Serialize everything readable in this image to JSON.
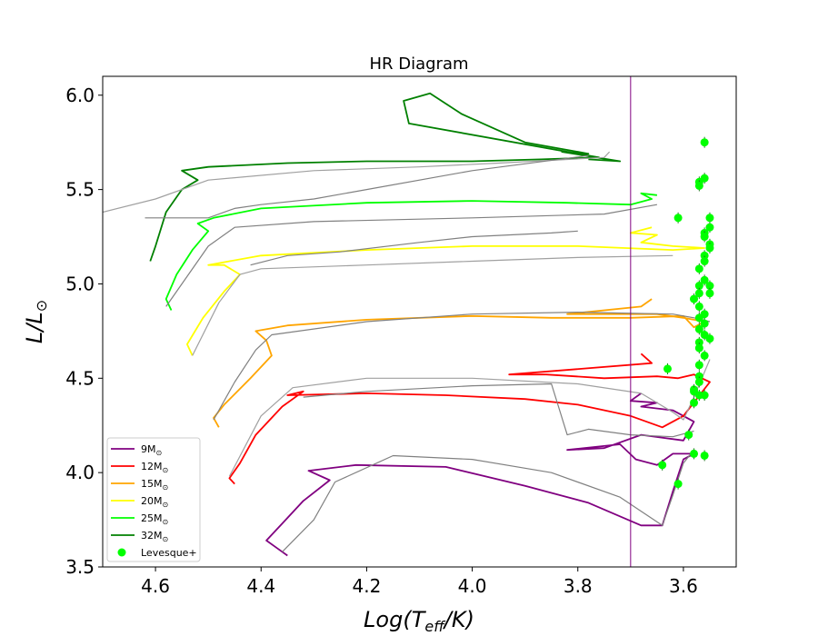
{
  "chart_data": {
    "type": "line",
    "title": "HR Diagram",
    "xlabel": "Log(T_eff/K)",
    "ylabel": "L/L_sun",
    "xlim": [
      4.7,
      3.5
    ],
    "ylim": [
      3.5,
      6.1
    ],
    "x_ticks": [
      "4.6",
      "4.4",
      "4.2",
      "4.0",
      "3.8",
      "3.6"
    ],
    "y_ticks": [
      "3.5",
      "4.0",
      "4.5",
      "5.0",
      "5.5",
      "6.0"
    ],
    "x_tick_values": [
      4.6,
      4.4,
      4.2,
      4.0,
      3.8,
      3.6
    ],
    "y_tick_values": [
      3.5,
      4.0,
      4.5,
      5.0,
      5.5,
      6.0
    ],
    "vline": {
      "x": 3.7,
      "color": "#800080"
    },
    "legend_position": "lower-left",
    "series": [
      {
        "name": "9M",
        "color": "#800080",
        "x": [
          4.35,
          4.37,
          4.39,
          4.36,
          4.32,
          4.27,
          4.31,
          4.22,
          4.05,
          3.9,
          3.78,
          3.68,
          3.64,
          3.62,
          3.6,
          3.58,
          3.62,
          3.65,
          3.69,
          3.72,
          3.82,
          3.75,
          3.68,
          3.6,
          3.58,
          3.62,
          3.68,
          3.65,
          3.7,
          3.68
        ],
        "y": [
          3.56,
          3.6,
          3.64,
          3.73,
          3.85,
          3.96,
          4.01,
          4.04,
          4.03,
          3.93,
          3.84,
          3.72,
          3.72,
          3.9,
          4.07,
          4.1,
          4.1,
          4.04,
          4.07,
          4.15,
          4.12,
          4.13,
          4.2,
          4.17,
          4.27,
          4.33,
          4.35,
          4.37,
          4.38,
          4.42
        ]
      },
      {
        "name": "12M",
        "color": "#ff0000",
        "x": [
          4.45,
          4.46,
          4.44,
          4.41,
          4.36,
          4.32,
          4.35,
          4.2,
          4.05,
          3.9,
          3.8,
          3.7,
          3.64,
          3.6,
          3.55,
          3.58,
          3.61,
          3.65,
          3.75,
          3.86,
          3.93,
          3.66,
          3.68
        ],
        "y": [
          3.94,
          3.97,
          4.05,
          4.2,
          4.35,
          4.43,
          4.41,
          4.42,
          4.41,
          4.39,
          4.36,
          4.3,
          4.24,
          4.3,
          4.48,
          4.52,
          4.5,
          4.51,
          4.5,
          4.52,
          4.52,
          4.58,
          4.63
        ]
      },
      {
        "name": "15M",
        "color": "#ffa500",
        "x": [
          4.48,
          4.49,
          4.47,
          4.42,
          4.38,
          4.39,
          4.41,
          4.35,
          4.2,
          4.0,
          3.85,
          3.7,
          3.6,
          3.58,
          3.56,
          3.6,
          3.65,
          3.72,
          3.82,
          3.68,
          3.66
        ],
        "y": [
          4.24,
          4.29,
          4.36,
          4.5,
          4.62,
          4.7,
          4.75,
          4.78,
          4.81,
          4.83,
          4.82,
          4.82,
          4.83,
          4.77,
          4.8,
          4.82,
          4.84,
          4.84,
          4.84,
          4.88,
          4.92
        ]
      },
      {
        "name": "20M",
        "color": "#ffff00",
        "x": [
          4.53,
          4.54,
          4.51,
          4.47,
          4.44,
          4.47,
          4.5,
          4.4,
          4.2,
          4.0,
          3.8,
          3.62,
          3.56,
          3.62,
          3.68,
          3.65,
          3.7,
          3.66
        ],
        "y": [
          4.62,
          4.68,
          4.82,
          4.96,
          5.05,
          5.1,
          5.1,
          5.15,
          5.18,
          5.2,
          5.2,
          5.18,
          5.19,
          5.2,
          5.22,
          5.26,
          5.27,
          5.3
        ]
      },
      {
        "name": "25M",
        "color": "#00ff00",
        "x": [
          4.57,
          4.58,
          4.56,
          4.53,
          4.5,
          4.52,
          4.49,
          4.4,
          4.2,
          4.0,
          3.82,
          3.7,
          3.66,
          3.68,
          3.65
        ],
        "y": [
          4.86,
          4.92,
          5.05,
          5.18,
          5.28,
          5.32,
          5.35,
          5.4,
          5.43,
          5.44,
          5.43,
          5.42,
          5.45,
          5.48,
          5.47
        ]
      },
      {
        "name": "32M",
        "color": "#008000",
        "x": [
          4.61,
          4.6,
          4.58,
          4.55,
          4.52,
          4.55,
          4.5,
          4.35,
          4.2,
          4.0,
          3.87,
          3.76,
          4.12,
          4.13,
          4.08,
          4.02,
          3.9,
          3.78,
          3.83,
          3.72,
          3.78
        ],
        "y": [
          5.12,
          5.2,
          5.38,
          5.5,
          5.55,
          5.6,
          5.62,
          5.64,
          5.65,
          5.65,
          5.66,
          5.67,
          5.85,
          5.97,
          6.01,
          5.9,
          5.75,
          5.69,
          5.7,
          5.65,
          5.66
        ]
      },
      {
        "name": "grey-9M",
        "color": "#808080",
        "legend": false,
        "x": [
          4.36,
          4.3,
          4.26,
          4.15,
          4.0,
          3.85,
          3.72,
          3.64,
          3.62,
          3.6,
          3.58
        ],
        "y": [
          3.58,
          3.75,
          3.95,
          4.09,
          4.07,
          4.0,
          3.87,
          3.72,
          3.88,
          4.05,
          4.12
        ]
      },
      {
        "name": "grey-12M",
        "color": "#a0a0a0",
        "x": [
          4.46,
          4.4,
          4.34,
          4.2,
          4.0,
          3.8,
          3.68,
          3.62,
          3.6,
          3.58,
          3.55
        ],
        "y": [
          3.98,
          4.3,
          4.45,
          4.5,
          4.5,
          4.47,
          4.42,
          4.32,
          4.28,
          4.4,
          4.6
        ]
      },
      {
        "name": "grey-12M-b",
        "color": "#808080",
        "x": [
          4.32,
          4.2,
          4.0,
          3.85,
          3.82,
          3.78,
          3.7,
          3.62,
          3.58
        ],
        "y": [
          4.4,
          4.43,
          4.46,
          4.47,
          4.2,
          4.23,
          4.2,
          4.19,
          4.22
        ]
      },
      {
        "name": "grey-15M",
        "color": "#808080",
        "x": [
          4.49,
          4.45,
          4.41,
          4.38,
          4.2,
          4.0,
          3.8,
          3.62,
          3.58,
          3.55
        ],
        "y": [
          4.28,
          4.48,
          4.65,
          4.73,
          4.8,
          4.84,
          4.85,
          4.84,
          4.82,
          4.8
        ]
      },
      {
        "name": "grey-20M",
        "color": "#a0a0a0",
        "x": [
          4.53,
          4.48,
          4.44,
          4.4,
          4.2,
          4.0,
          3.8,
          3.62
        ],
        "y": [
          4.62,
          4.9,
          5.05,
          5.08,
          5.1,
          5.12,
          5.14,
          5.15
        ]
      },
      {
        "name": "grey-20M-b",
        "color": "#808080",
        "x": [
          4.42,
          4.35,
          4.25,
          4.1,
          4.0,
          3.85,
          3.8
        ],
        "y": [
          5.1,
          5.15,
          5.17,
          5.22,
          5.25,
          5.27,
          5.28
        ]
      },
      {
        "name": "grey-25M",
        "color": "#808080",
        "x": [
          4.58,
          4.5,
          4.45,
          4.3,
          4.0,
          3.75,
          3.65
        ],
        "y": [
          4.88,
          5.2,
          5.3,
          5.33,
          5.35,
          5.37,
          5.42
        ]
      },
      {
        "name": "grey-32M",
        "color": "#a0a0a0",
        "x": [
          4.7,
          4.6,
          4.5,
          4.3,
          4.1,
          3.95,
          3.75,
          3.74
        ],
        "y": [
          5.38,
          5.45,
          5.55,
          5.6,
          5.62,
          5.64,
          5.67,
          5.7
        ]
      },
      {
        "name": "grey-32M-b",
        "color": "#808080",
        "x": [
          4.62,
          4.5,
          4.45,
          4.4,
          4.3,
          4.2,
          4.0,
          3.78
        ],
        "y": [
          5.35,
          5.35,
          5.4,
          5.42,
          5.45,
          5.5,
          5.6,
          5.68
        ]
      }
    ],
    "scatter": {
      "name": "Levesque+",
      "color": "#00ff00",
      "points": [
        [
          3.56,
          5.75
        ],
        [
          3.56,
          5.56
        ],
        [
          3.57,
          5.54
        ],
        [
          3.57,
          5.52
        ],
        [
          3.61,
          5.35
        ],
        [
          3.55,
          5.35
        ],
        [
          3.55,
          5.3
        ],
        [
          3.56,
          5.27
        ],
        [
          3.56,
          5.25
        ],
        [
          3.55,
          5.21
        ],
        [
          3.55,
          5.19
        ],
        [
          3.56,
          5.15
        ],
        [
          3.56,
          5.12
        ],
        [
          3.57,
          5.08
        ],
        [
          3.56,
          5.02
        ],
        [
          3.55,
          4.99
        ],
        [
          3.57,
          4.99
        ],
        [
          3.55,
          4.95
        ],
        [
          3.57,
          4.95
        ],
        [
          3.58,
          4.92
        ],
        [
          3.57,
          4.88
        ],
        [
          3.56,
          4.84
        ],
        [
          3.57,
          4.82
        ],
        [
          3.56,
          4.79
        ],
        [
          3.57,
          4.76
        ],
        [
          3.56,
          4.73
        ],
        [
          3.55,
          4.71
        ],
        [
          3.57,
          4.69
        ],
        [
          3.57,
          4.66
        ],
        [
          3.56,
          4.62
        ],
        [
          3.57,
          4.57
        ],
        [
          3.63,
          4.55
        ],
        [
          3.57,
          4.51
        ],
        [
          3.57,
          4.48
        ],
        [
          3.58,
          4.44
        ],
        [
          3.58,
          4.43
        ],
        [
          3.57,
          4.41
        ],
        [
          3.56,
          4.41
        ],
        [
          3.58,
          4.37
        ],
        [
          3.59,
          4.2
        ],
        [
          3.58,
          4.1
        ],
        [
          3.56,
          4.09
        ],
        [
          3.64,
          4.04
        ],
        [
          3.61,
          3.94
        ]
      ]
    },
    "legend": [
      {
        "label": "9M",
        "color": "#800080",
        "marker": "line"
      },
      {
        "label": "12M",
        "color": "#ff0000",
        "marker": "line"
      },
      {
        "label": "15M",
        "color": "#ffa500",
        "marker": "line"
      },
      {
        "label": "20M",
        "color": "#ffff00",
        "marker": "line"
      },
      {
        "label": "25M",
        "color": "#00ff00",
        "marker": "line"
      },
      {
        "label": "32M",
        "color": "#008000",
        "marker": "line"
      },
      {
        "label": "Levesque+",
        "color": "#00ff00",
        "marker": "dot"
      }
    ]
  }
}
